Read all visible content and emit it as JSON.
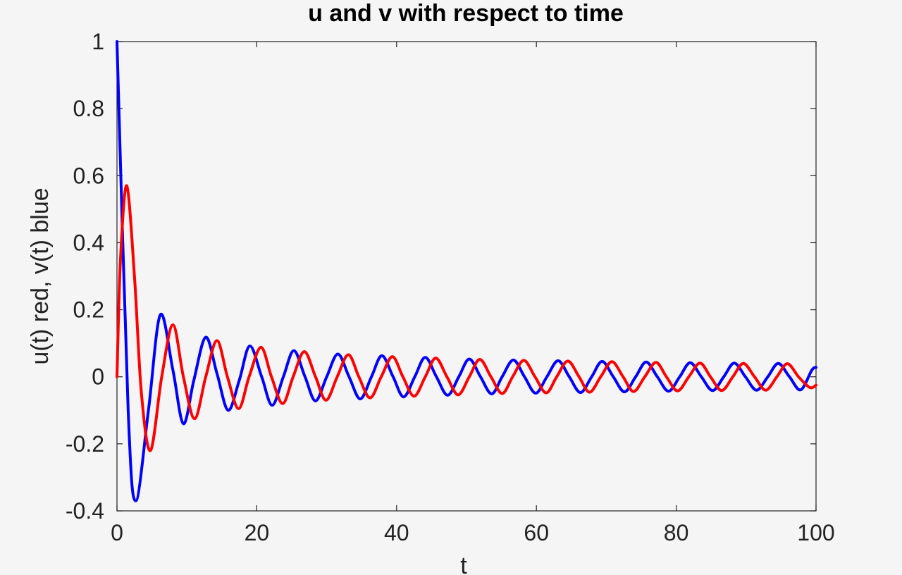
{
  "chart_data": {
    "type": "line",
    "title": "u and v with respect to time",
    "xlabel": "t",
    "ylabel": "u(t) red, v(t) blue",
    "xlim": [
      0,
      100
    ],
    "ylim": [
      -0.4,
      1
    ],
    "xticks": [
      0,
      20,
      40,
      60,
      80,
      100
    ],
    "xtick_labels": [
      "0",
      "20",
      "40",
      "60",
      "80",
      "100"
    ],
    "yticks": [
      -0.4,
      -0.2,
      0,
      0.2,
      0.4,
      0.6,
      0.8,
      1
    ],
    "ytick_labels": [
      "-0.4",
      "-0.2",
      "0",
      "0.2",
      "0.4",
      "0.6",
      "0.8",
      "1"
    ],
    "grid": false,
    "series": [
      {
        "key": "v",
        "color": "#0000ff",
        "x": [
          0,
          1.6,
          2.7,
          4.5,
          6.2,
          8.0,
          9.5,
          11.0,
          12.7,
          14.3,
          15.9,
          17.5,
          19.0,
          20.7,
          22.2,
          23.8,
          25.3,
          26.9,
          28.4,
          30.0,
          31.6,
          33.2,
          34.8,
          36.4,
          37.9,
          39.5,
          41.0,
          42.6,
          44.1,
          45.7,
          47.3,
          48.9,
          50.4,
          52.0,
          53.6,
          55.1,
          56.7,
          58.3,
          59.9,
          61.5,
          63.1,
          64.7,
          66.3,
          67.9,
          69.4,
          71.0,
          72.6,
          74.2,
          75.7,
          77.3,
          78.9,
          80.5,
          82.0,
          83.6,
          85.2,
          86.8,
          88.3,
          89.9,
          91.5,
          93.1,
          94.6,
          96.2,
          97.8,
          99.4,
          100
        ],
        "y": [
          1.0,
          -0.1,
          -0.37,
          -0.1,
          0.185,
          0.02,
          -0.14,
          -0.01,
          0.118,
          0.01,
          -0.1,
          -0.01,
          0.092,
          0.0,
          -0.085,
          0.0,
          0.078,
          0.0,
          -0.072,
          0.0,
          0.068,
          0.0,
          -0.066,
          0.0,
          0.063,
          0.0,
          -0.06,
          0.0,
          0.058,
          0.0,
          -0.055,
          0.0,
          0.053,
          0.0,
          -0.051,
          0.0,
          0.05,
          0.0,
          -0.049,
          0.0,
          0.048,
          0.0,
          -0.047,
          0.0,
          0.046,
          0.0,
          -0.045,
          0.0,
          0.044,
          0.0,
          -0.043,
          0.0,
          0.042,
          0.0,
          -0.041,
          0.0,
          0.041,
          0.0,
          -0.04,
          0.0,
          0.04,
          0.0,
          -0.039,
          0.02,
          0.028
        ]
      },
      {
        "key": "u",
        "color": "#ff0000",
        "x": [
          0,
          0.5,
          1.4,
          2.5,
          3.5,
          4.8,
          6.4,
          8.0,
          9.5,
          11.1,
          12.7,
          14.3,
          15.8,
          17.4,
          18.9,
          20.6,
          22.1,
          23.7,
          25.2,
          26.8,
          28.4,
          29.9,
          31.5,
          33.1,
          34.6,
          36.2,
          37.8,
          39.4,
          40.9,
          42.5,
          44.1,
          45.6,
          47.2,
          48.8,
          50.4,
          51.9,
          53.5,
          55.1,
          56.6,
          58.2,
          59.8,
          61.4,
          62.9,
          64.5,
          66.1,
          67.6,
          69.2,
          70.8,
          72.4,
          73.9,
          75.5,
          77.1,
          78.6,
          80.2,
          81.8,
          83.4,
          84.9,
          86.5,
          88.1,
          89.6,
          91.2,
          92.8,
          94.4,
          95.9,
          97.5,
          99.1,
          100
        ],
        "y": [
          0.0,
          0.35,
          0.57,
          0.3,
          -0.05,
          -0.22,
          0.0,
          0.155,
          0.0,
          -0.125,
          0.0,
          0.108,
          0.0,
          -0.095,
          0.0,
          0.088,
          0.0,
          -0.08,
          0.0,
          0.075,
          0.0,
          -0.07,
          0.0,
          0.066,
          0.0,
          -0.063,
          0.0,
          0.06,
          0.0,
          -0.058,
          0.0,
          0.056,
          0.0,
          -0.054,
          0.0,
          0.052,
          0.0,
          -0.05,
          0.0,
          0.049,
          0.0,
          -0.048,
          0.0,
          0.047,
          0.0,
          -0.046,
          0.0,
          0.045,
          0.0,
          -0.044,
          0.0,
          0.043,
          0.0,
          -0.042,
          0.0,
          0.041,
          0.0,
          -0.041,
          0.0,
          0.04,
          0.0,
          -0.04,
          0.0,
          0.039,
          0.0,
          -0.032,
          -0.025
        ]
      }
    ]
  }
}
